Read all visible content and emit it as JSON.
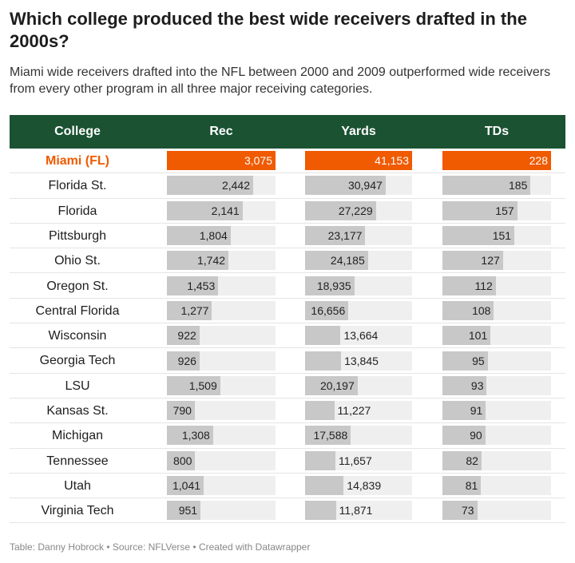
{
  "header": {
    "title": "Which college produced the best wide receivers drafted in the 2000s?",
    "subtitle": "Miami wide receivers drafted into the NFL between 2000 and 2009 outperformed wide receivers from every other program in all three major receiving categories."
  },
  "table": {
    "columns": [
      "College",
      "Rec",
      "Yards",
      "TDs"
    ],
    "rows": [
      {
        "college": "Miami (FL)",
        "values": [
          3075,
          41153,
          228
        ],
        "value_labels": [
          "3,075",
          "41,153",
          "228"
        ],
        "highlight": true
      },
      {
        "college": "Florida St.",
        "values": [
          2442,
          30947,
          185
        ],
        "value_labels": [
          "2,442",
          "30,947",
          "185"
        ]
      },
      {
        "college": "Florida",
        "values": [
          2141,
          27229,
          157
        ],
        "value_labels": [
          "2,141",
          "27,229",
          "157"
        ]
      },
      {
        "college": "Pittsburgh",
        "values": [
          1804,
          23177,
          151
        ],
        "value_labels": [
          "1,804",
          "23,177",
          "151"
        ]
      },
      {
        "college": "Ohio St.",
        "values": [
          1742,
          24185,
          127
        ],
        "value_labels": [
          "1,742",
          "24,185",
          "127"
        ]
      },
      {
        "college": "Oregon St.",
        "values": [
          1453,
          18935,
          112
        ],
        "value_labels": [
          "1,453",
          "18,935",
          "112"
        ]
      },
      {
        "college": "Central Florida",
        "values": [
          1277,
          16656,
          108
        ],
        "value_labels": [
          "1,277",
          "16,656",
          "108"
        ]
      },
      {
        "college": "Wisconsin",
        "values": [
          922,
          13664,
          101
        ],
        "value_labels": [
          "922",
          "13,664",
          "101"
        ]
      },
      {
        "college": "Georgia Tech",
        "values": [
          926,
          13845,
          95
        ],
        "value_labels": [
          "926",
          "13,845",
          "95"
        ]
      },
      {
        "college": "LSU",
        "values": [
          1509,
          20197,
          93
        ],
        "value_labels": [
          "1,509",
          "20,197",
          "93"
        ]
      },
      {
        "college": "Kansas St.",
        "values": [
          790,
          11227,
          91
        ],
        "value_labels": [
          "790",
          "11,227",
          "91"
        ]
      },
      {
        "college": "Michigan",
        "values": [
          1308,
          17588,
          90
        ],
        "value_labels": [
          "1,308",
          "17,588",
          "90"
        ]
      },
      {
        "college": "Tennessee",
        "values": [
          800,
          11657,
          82
        ],
        "value_labels": [
          "800",
          "11,657",
          "82"
        ]
      },
      {
        "college": "Utah",
        "values": [
          1041,
          14839,
          81
        ],
        "value_labels": [
          "1,041",
          "14,839",
          "81"
        ]
      },
      {
        "college": "Virginia Tech",
        "values": [
          951,
          11871,
          73
        ],
        "value_labels": [
          "951",
          "11,871",
          "73"
        ]
      }
    ]
  },
  "footer": "Table: Danny Hobrock • Source: NFLVerse • Created with Datawrapper"
}
